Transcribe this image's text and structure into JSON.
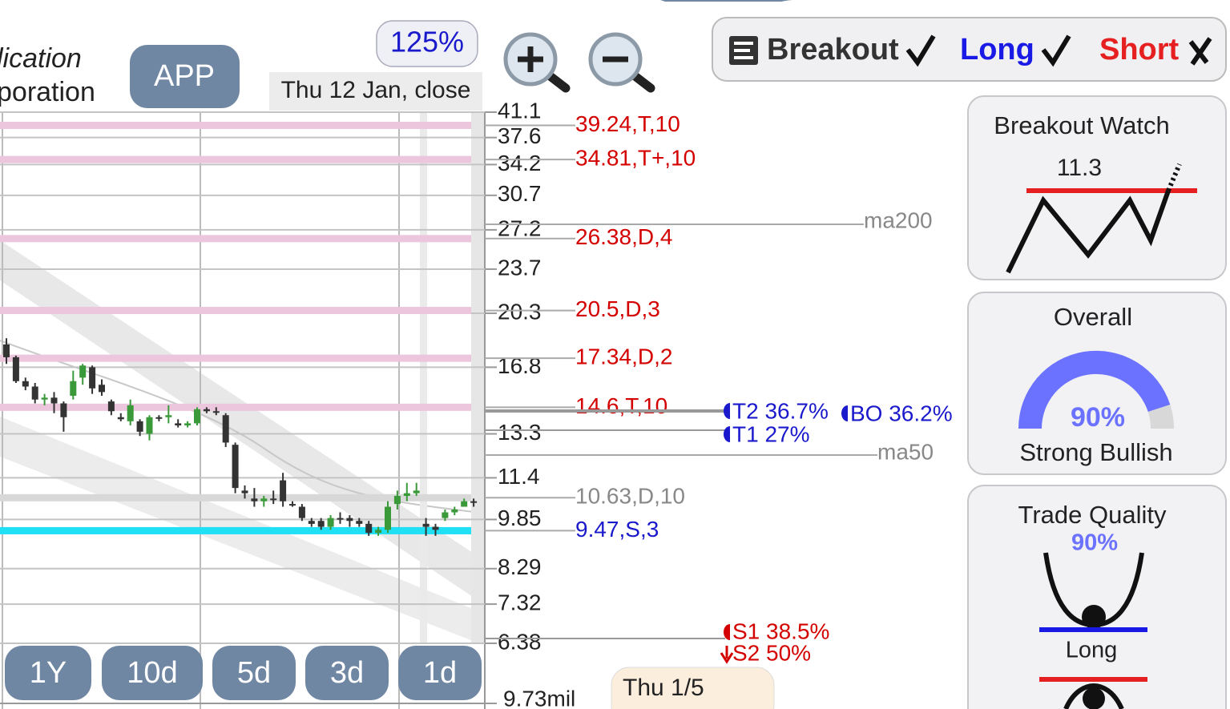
{
  "header": {
    "company_lines": [
      "lication",
      "poration"
    ],
    "ticker": "APP",
    "zoom": "125%",
    "date": "Thu 12 Jan, close"
  },
  "filters": [
    {
      "label": "Breakout",
      "color": "#333333"
    },
    {
      "label": "Long",
      "color": "#1a1ae6"
    },
    {
      "label": "Short",
      "color": "#e62020"
    }
  ],
  "chart": {
    "log_scale": true,
    "ylim": [
      6.38,
      41.1
    ],
    "yticks": [
      41.1,
      37.6,
      34.2,
      30.7,
      27.2,
      23.7,
      20.3,
      16.8,
      13.3,
      11.4,
      9.85,
      8.29,
      7.32,
      6.38
    ],
    "grid": true,
    "up_color": "#3a9a3a",
    "down_color": "#333333",
    "candles": [
      [
        18.2,
        18.6,
        17.0,
        17.4
      ],
      [
        17.4,
        17.5,
        15.9,
        16.0
      ],
      [
        16.0,
        16.2,
        15.5,
        15.7
      ],
      [
        15.7,
        15.9,
        14.8,
        15.0
      ],
      [
        15.0,
        15.3,
        14.7,
        15.1
      ],
      [
        15.1,
        15.4,
        14.3,
        14.8
      ],
      [
        14.8,
        14.9,
        13.4,
        14.1
      ],
      [
        15.2,
        16.6,
        15.0,
        16.0
      ],
      [
        16.2,
        17.0,
        15.8,
        16.9
      ],
      [
        16.8,
        16.9,
        15.3,
        15.6
      ],
      [
        15.8,
        16.1,
        15.2,
        15.4
      ],
      [
        14.9,
        15.0,
        14.2,
        14.4
      ],
      [
        14.1,
        14.3,
        13.9,
        14.0
      ],
      [
        13.9,
        15.0,
        13.7,
        14.7
      ],
      [
        13.9,
        14.0,
        13.2,
        13.4
      ],
      [
        13.3,
        14.2,
        13.0,
        14.1
      ],
      [
        14.1,
        14.2,
        13.9,
        14.1
      ],
      [
        14.1,
        14.7,
        13.8,
        14.2
      ],
      [
        13.8,
        14.0,
        13.6,
        13.7
      ],
      [
        13.7,
        13.9,
        13.6,
        13.8
      ],
      [
        13.8,
        14.6,
        13.7,
        14.5
      ],
      [
        14.5,
        14.6,
        14.3,
        14.4
      ],
      [
        14.4,
        14.6,
        14.2,
        14.4
      ],
      [
        14.2,
        14.3,
        12.7,
        12.9
      ],
      [
        12.8,
        12.9,
        10.8,
        11.0
      ],
      [
        10.9,
        11.1,
        10.6,
        10.8
      ],
      [
        10.6,
        11.0,
        10.3,
        10.5
      ],
      [
        10.5,
        10.7,
        10.3,
        10.6
      ],
      [
        10.6,
        10.9,
        10.4,
        10.6
      ],
      [
        11.3,
        11.6,
        10.3,
        10.5
      ],
      [
        10.4,
        10.5,
        10.3,
        10.4
      ],
      [
        10.3,
        10.4,
        9.8,
        9.9
      ],
      [
        9.8,
        9.9,
        9.6,
        9.7
      ],
      [
        9.8,
        9.9,
        9.5,
        9.6
      ],
      [
        9.6,
        10.0,
        9.5,
        9.9
      ],
      [
        9.9,
        10.1,
        9.7,
        9.9
      ],
      [
        9.9,
        10.0,
        9.6,
        9.8
      ],
      [
        9.8,
        9.9,
        9.6,
        9.7
      ],
      [
        9.7,
        9.8,
        9.3,
        9.4
      ],
      [
        9.4,
        9.6,
        9.3,
        9.5
      ],
      [
        9.5,
        10.5,
        9.4,
        10.3
      ],
      [
        10.4,
        10.9,
        10.2,
        10.7
      ],
      [
        10.7,
        11.2,
        10.5,
        10.8
      ],
      [
        10.8,
        11.2,
        10.7,
        10.9
      ],
      [
        9.7,
        9.9,
        9.3,
        9.6
      ],
      [
        9.6,
        9.7,
        9.3,
        9.5
      ],
      [
        9.9,
        10.2,
        9.8,
        10.1
      ],
      [
        10.1,
        10.3,
        10.0,
        10.2
      ],
      [
        10.3,
        10.6,
        10.3,
        10.5
      ],
      [
        10.5,
        10.6,
        10.3,
        10.5
      ]
    ],
    "levels": [
      {
        "label": "39.24,T,10",
        "price": 39.24,
        "color": "#ebc6dc",
        "label_color": "#d40000"
      },
      {
        "label": "34.81,T+,10",
        "price": 34.81,
        "color": "#ebc6dc",
        "label_color": "#d40000"
      },
      {
        "label": "26.38,D,4",
        "price": 26.38,
        "color": "#ebc6dc",
        "label_color": "#d40000"
      },
      {
        "label": "20.5,D,3",
        "price": 20.5,
        "color": "#ebc6dc",
        "label_color": "#d40000"
      },
      {
        "label": "17.34,D,2",
        "price": 17.34,
        "color": "#ebc6dc",
        "label_color": "#d40000"
      },
      {
        "label": "14.6,T,10",
        "price": 14.6,
        "color": "#ebc6dc",
        "label_color": "#d40000"
      },
      {
        "label": "10.63,D,10",
        "price": 10.63,
        "color": "#d8d8d8",
        "label_color": "#888888"
      },
      {
        "label": "9.47,S,3",
        "price": 9.47,
        "color": "#1fe0f5",
        "label_color": "#1a1acc"
      }
    ],
    "ma_labels": [
      "ma200",
      "ma50"
    ],
    "targets": [
      "T2 36.7%",
      "BO 36.2%",
      "T1 27%",
      "S1 38.5%",
      "S2 50%"
    ],
    "volume_label": "9.73mil",
    "period_buttons": [
      "1Y",
      "10d",
      "5d",
      "3d",
      "1d"
    ],
    "hover_date": "Thu 1/5"
  },
  "cards": {
    "breakout_watch": {
      "title": "Breakout Watch",
      "value": "11.3"
    },
    "overall": {
      "title": "Overall",
      "value": 90,
      "value_label": "90%",
      "rating": "Strong Bullish"
    },
    "trade_quality": {
      "title": "Trade Quality",
      "value_label": "90%",
      "direction": "Long"
    }
  }
}
